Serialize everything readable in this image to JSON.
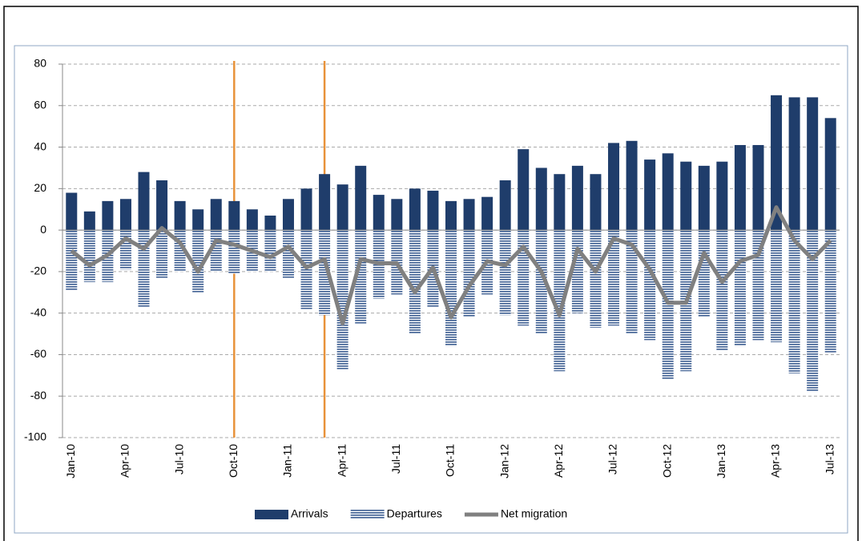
{
  "chart_data": {
    "type": "bar",
    "categories": [
      "Jan-10",
      null,
      null,
      "Apr-10",
      null,
      null,
      "Jul-10",
      null,
      null,
      "Oct-10",
      null,
      null,
      "Jan-11",
      null,
      null,
      "Apr-11",
      null,
      null,
      "Jul-11",
      null,
      null,
      "Oct-11",
      null,
      null,
      "Jan-12",
      null,
      null,
      "Apr-12",
      null,
      null,
      "Jul-12",
      null,
      null,
      "Oct-12",
      null,
      null,
      "Jan-13",
      null,
      null,
      "Apr-13",
      null,
      null,
      "Jul-13"
    ],
    "series": [
      {
        "name": "Arrivals",
        "type": "bar",
        "color": "#1f3d6b",
        "values": [
          18,
          9,
          14,
          15,
          28,
          24,
          14,
          10,
          15,
          14,
          10,
          7,
          15,
          20,
          27,
          22,
          31,
          17,
          15,
          20,
          19,
          14,
          15,
          16,
          24,
          39,
          30,
          27,
          31,
          27,
          42,
          43,
          34,
          37,
          33,
          31,
          33,
          41,
          41,
          65,
          64,
          64,
          54
        ]
      },
      {
        "name": "Departures",
        "type": "bar",
        "color": "#3c5d91",
        "pattern": "horizontal-lines",
        "values": [
          -29,
          -25,
          -25,
          -19,
          -37,
          -23,
          -20,
          -30,
          -20,
          -21,
          -20,
          -20,
          -23,
          -38,
          -41,
          -67,
          -45,
          -33,
          -31,
          -50,
          -37,
          -56,
          -42,
          -31,
          -41,
          -46,
          -50,
          -68,
          -40,
          -47,
          -46,
          -50,
          -53,
          -72,
          -68,
          -42,
          -58,
          -56,
          -53,
          -54,
          -69,
          -78,
          -59
        ]
      },
      {
        "name": "Net migration",
        "type": "line",
        "color": "#808080",
        "values": [
          -10,
          -17,
          -12,
          -4,
          -9,
          1,
          -6,
          -20,
          -5,
          -7,
          -10,
          -13,
          -8,
          -18,
          -14,
          -45,
          -14,
          -16,
          -16,
          -30,
          -18,
          -42,
          -27,
          -15,
          -17,
          -8,
          -20,
          -41,
          -9,
          -20,
          -4,
          -7,
          -19,
          -35,
          -35,
          -11,
          -25,
          -15,
          -12,
          11,
          -5,
          -14,
          -5
        ]
      }
    ],
    "ylim": [
      -100,
      80
    ],
    "yticks": [
      -100,
      -80,
      -60,
      -40,
      -20,
      0,
      20,
      40,
      60,
      80
    ],
    "grid": true
  }
}
